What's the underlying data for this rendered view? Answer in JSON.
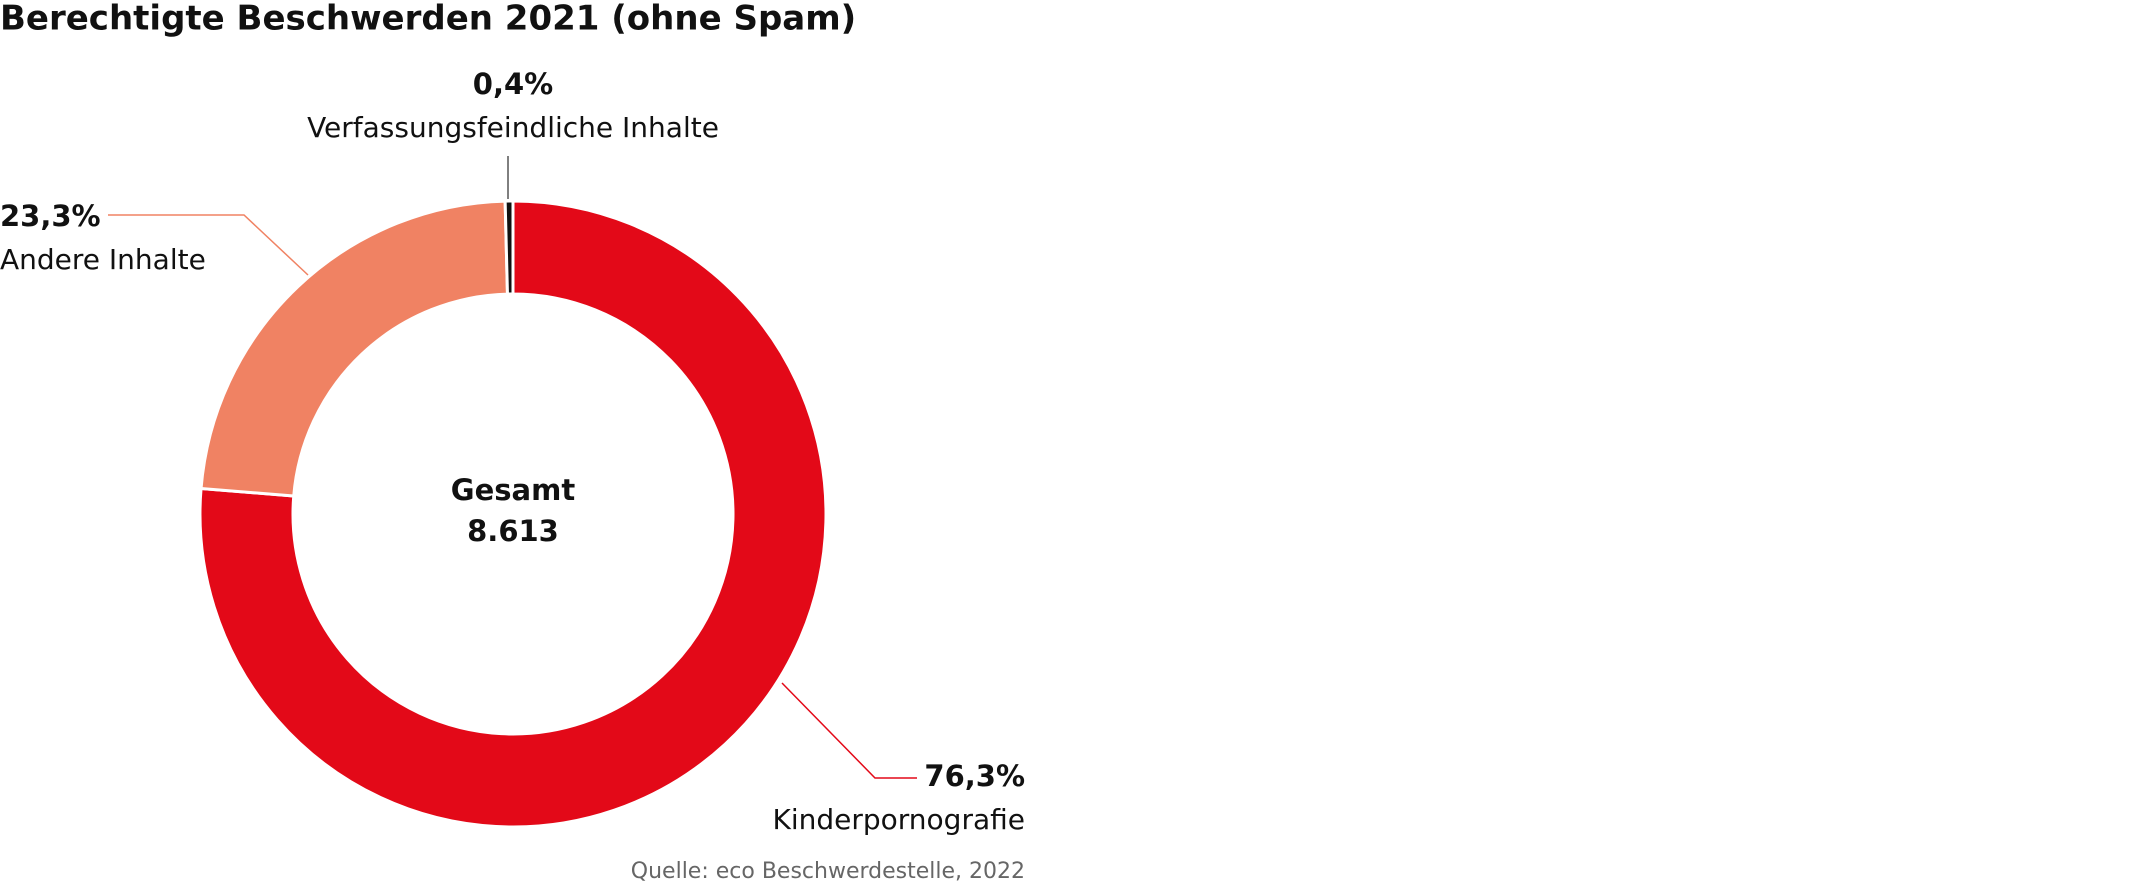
{
  "chart_data": {
    "type": "donut",
    "title": "Berechtigte Beschwerden 2021 (ohne Spam)",
    "categories": [
      "Kinderpornografie",
      "Andere Inhalte",
      "Verfassungsfeindliche Inhalte"
    ],
    "values": [
      76.3,
      23.3,
      0.4
    ],
    "value_labels": [
      "76,3%",
      "23,3%",
      "0,4%"
    ],
    "colors": [
      "#e30918",
      "#f08263",
      "#111111"
    ],
    "center_text": [
      "Gesamt",
      "8.613"
    ],
    "source": "Quelle: eco Beschwerdestelle, 2022"
  }
}
